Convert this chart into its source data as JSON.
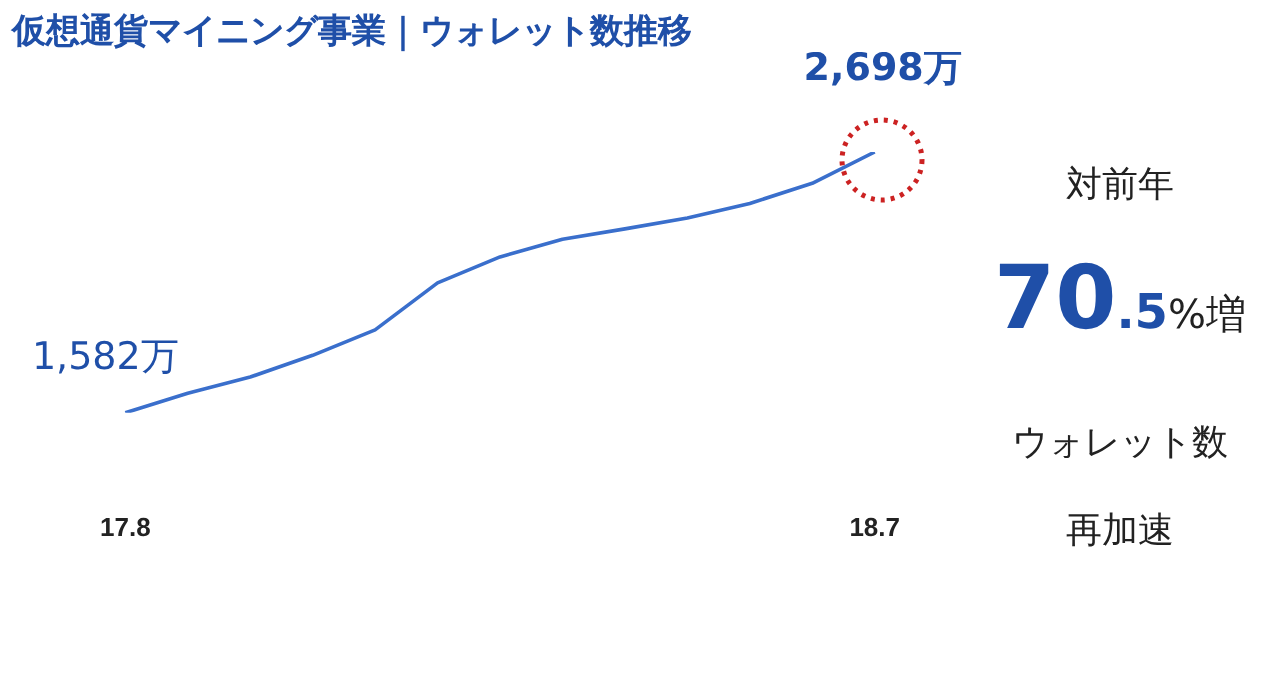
{
  "chart_data": {
    "type": "line",
    "title": "仮想通貨マイニング事業｜ウォレット数推移",
    "categories": [
      "17.8",
      null,
      null,
      null,
      null,
      null,
      null,
      null,
      null,
      null,
      null,
      null,
      "18.7"
    ],
    "series": [
      {
        "color": "#3a6fcc",
        "values": [
          1582,
          1666,
          1735,
          1828,
          1937,
          2138,
          2249,
          2325,
          2369,
          2416,
          2478,
          2564,
          2698
        ],
        "value_labels": [
          "1,582万",
          null,
          null,
          null,
          null,
          null,
          null,
          null,
          null,
          null,
          null,
          null,
          "2,698万"
        ]
      }
    ],
    "annotations": [
      "対前年",
      "70.5%増",
      "ウォレット数",
      "再加速"
    ],
    "grid": false,
    "legend": false,
    "marker": "none",
    "line_style": "solid",
    "tick_labels": "x"
  }
}
